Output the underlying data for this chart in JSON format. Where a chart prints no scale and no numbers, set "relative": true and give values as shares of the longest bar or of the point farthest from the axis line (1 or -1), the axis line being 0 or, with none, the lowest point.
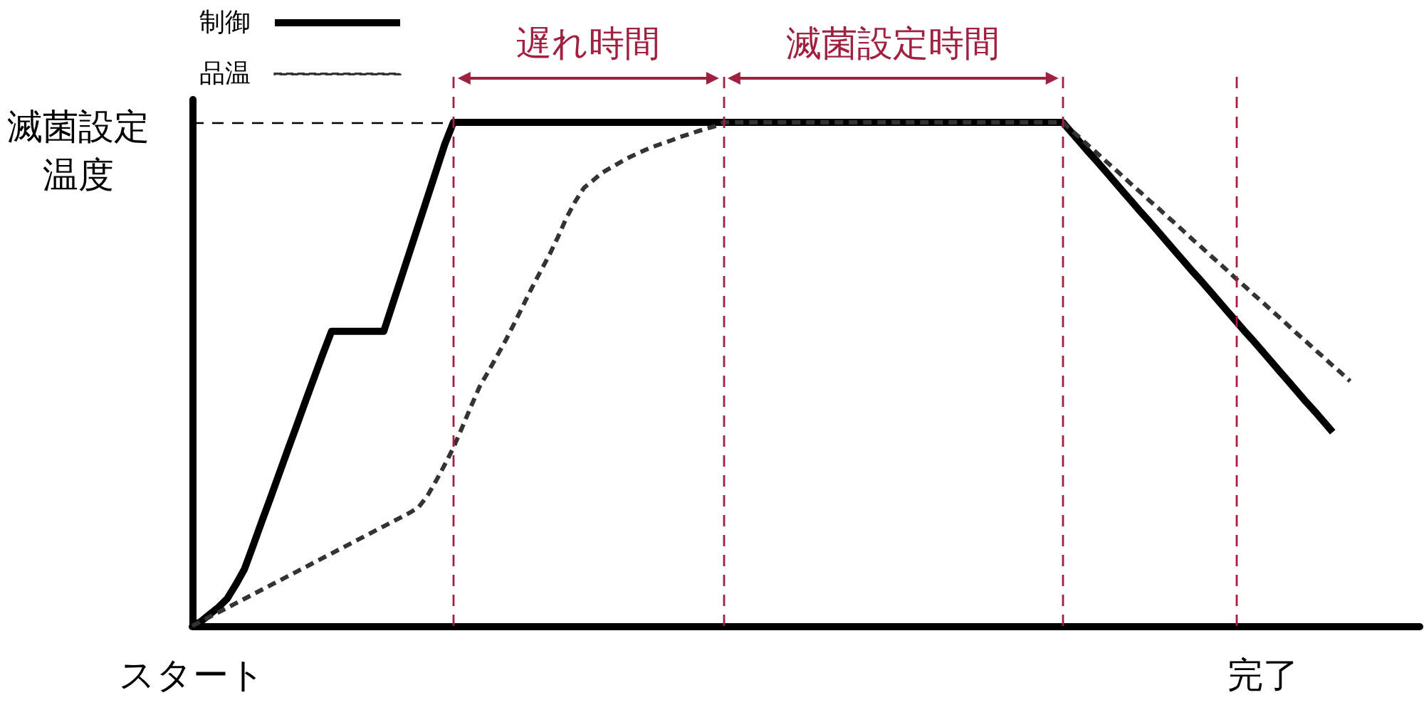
{
  "chart_data": {
    "type": "line",
    "relative": true,
    "legend": "top left",
    "marker": "none",
    "tick_labels": "x",
    "categories": [
      "スタート",
      null,
      null,
      null,
      null,
      null,
      null,
      null,
      null,
      null,
      null,
      null,
      null,
      null,
      null,
      null,
      null,
      null,
      null,
      null,
      null,
      null,
      null,
      null,
      null,
      null,
      null,
      null,
      null,
      null,
      null,
      null,
      null,
      null,
      null,
      null,
      null,
      null,
      null,
      null,
      null,
      null,
      null,
      null,
      null,
      null,
      null,
      null,
      null,
      null,
      null,
      null,
      null,
      null,
      null,
      null,
      null,
      null,
      null,
      null,
      null,
      null,
      null,
      null,
      null,
      null,
      null,
      null,
      null,
      null,
      null,
      null,
      null,
      null,
      null,
      null,
      null,
      null,
      null,
      null,
      null,
      null,
      null,
      null,
      null,
      null,
      null,
      null,
      null,
      null,
      null,
      null,
      null,
      null,
      null,
      null,
      null,
      null,
      null,
      null,
      null,
      null,
      null,
      null,
      null,
      null,
      null,
      null,
      null,
      null,
      null,
      null,
      null,
      null,
      null,
      null,
      null,
      null,
      null,
      null,
      null,
      null,
      null,
      "完了",
      null,
      null,
      null,
      null,
      null,
      null,
      null,
      null,
      null,
      null,
      null,
      null,
      null,
      null,
      null,
      null,
      null,
      null
    ],
    "series": [
      {
        "name": "制御",
        "color": "#000000",
        "line_style": "solid",
        "values": [
          0,
          0.009,
          0.023,
          0.037,
          0.054,
          0.082,
          0.113,
          0.16,
          0.208,
          0.255,
          0.303,
          0.351,
          0.398,
          0.446,
          0.493,
          0.54,
          0.585,
          0.585,
          0.585,
          0.585,
          0.585,
          0.585,
          0.585,
          0.638,
          0.691,
          0.744,
          0.797,
          0.85,
          0.903,
          0.956,
          1,
          1,
          1,
          1,
          1,
          1,
          1,
          1,
          1,
          1,
          1,
          1,
          1,
          1,
          1,
          1,
          1,
          1,
          1,
          1,
          1,
          1,
          1,
          1,
          1,
          1,
          1,
          1,
          1,
          1,
          1,
          1,
          1,
          1,
          1,
          1,
          1,
          1,
          1,
          1,
          1,
          1,
          1,
          1,
          1,
          1,
          1,
          1,
          1,
          1,
          1,
          1,
          1,
          1,
          1,
          1,
          1,
          1,
          1,
          1,
          1,
          1,
          1,
          1,
          1,
          1,
          1,
          1,
          1,
          1,
          1,
          0.98,
          0.96,
          0.94,
          0.921,
          0.901,
          0.881,
          0.861,
          0.841,
          0.821,
          0.802,
          0.782,
          0.762,
          0.742,
          0.722,
          0.702,
          0.683,
          0.663,
          0.643,
          0.623,
          0.603,
          0.583,
          0.564,
          0.544,
          0.524,
          0.504,
          0.484,
          0.464,
          0.444,
          0.425,
          0.405,
          0.385,
          null,
          null,
          null,
          null,
          null,
          null,
          null,
          null,
          null,
          null
        ]
      },
      {
        "name": "品温",
        "color": "#333333",
        "line_style": "dashed",
        "values": [
          0,
          0.009,
          0.018,
          0.027,
          0.036,
          0.045,
          0.054,
          0.063,
          0.072,
          0.081,
          0.09,
          0.099,
          0.108,
          0.117,
          0.126,
          0.135,
          0.144,
          0.153,
          0.162,
          0.171,
          0.18,
          0.189,
          0.198,
          0.207,
          0.216,
          0.225,
          0.236,
          0.258,
          0.288,
          0.32,
          0.354,
          0.394,
          0.435,
          0.475,
          0.505,
          0.536,
          0.567,
          0.601,
          0.636,
          0.671,
          0.704,
          0.736,
          0.772,
          0.811,
          0.843,
          0.87,
          0.884,
          0.899,
          0.909,
          0.919,
          0.929,
          0.937,
          0.945,
          0.952,
          0.958,
          0.964,
          0.971,
          0.976,
          0.982,
          0.987,
          0.992,
          1,
          1,
          1,
          1,
          1,
          1,
          1,
          1,
          1,
          1,
          1,
          1,
          1,
          1,
          1,
          1,
          1,
          1,
          1,
          1,
          1,
          1,
          1,
          1,
          1,
          1,
          1,
          1,
          1,
          1,
          1,
          1,
          1,
          1,
          1,
          1,
          1,
          1,
          1,
          1,
          0.984,
          0.969,
          0.953,
          0.938,
          0.922,
          0.907,
          0.891,
          0.875,
          0.86,
          0.844,
          0.829,
          0.813,
          0.798,
          0.782,
          0.766,
          0.751,
          0.735,
          0.72,
          0.704,
          0.688,
          0.673,
          0.657,
          0.642,
          0.626,
          0.611,
          0.595,
          0.579,
          0.564,
          0.548,
          0.533,
          0.517,
          0.502,
          0.486,
          null,
          null,
          null,
          null,
          null,
          null,
          null,
          null
        ]
      }
    ],
    "ref_lines": [
      {
        "axis": "y",
        "value": 1,
        "label": "滅菌設定温度",
        "color": "#000000",
        "line_style": "dashed"
      }
    ],
    "annotations": [
      "遅れ時間",
      "滅菌設定時間"
    ]
  }
}
